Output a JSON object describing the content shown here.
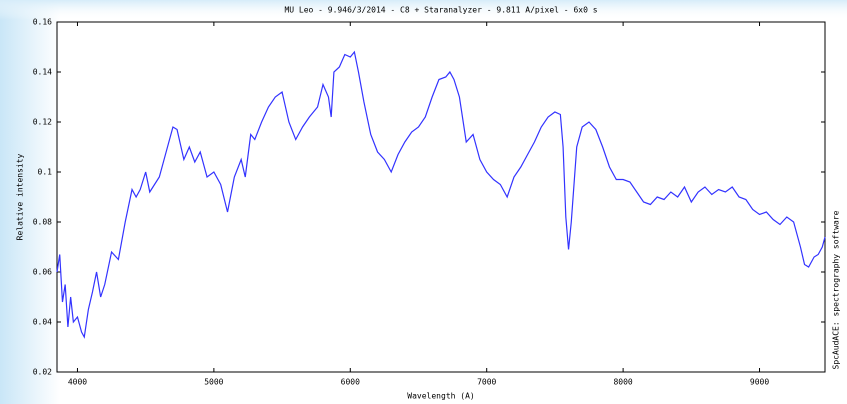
{
  "chart_data": {
    "type": "line",
    "title": "MU Leo - 9.946/3/2014 - C8 + Staranalyzer - 9.811 A/pixel - 6x0 s",
    "x_label": "Wavelength (A)",
    "y_label": "Relative intensity",
    "side_note": "SpcAudACE: spectrography software",
    "color": "#3333ff",
    "x": [
      3850,
      3870,
      3890,
      3910,
      3930,
      3950,
      3970,
      4000,
      4030,
      4050,
      4080,
      4110,
      4140,
      4170,
      4200,
      4250,
      4300,
      4350,
      4400,
      4430,
      4460,
      4500,
      4530,
      4600,
      4650,
      4700,
      4730,
      4780,
      4820,
      4860,
      4900,
      4950,
      5000,
      5050,
      5100,
      5150,
      5200,
      5230,
      5270,
      5300,
      5350,
      5400,
      5450,
      5500,
      5550,
      5600,
      5650,
      5700,
      5760,
      5800,
      5840,
      5860,
      5880,
      5920,
      5960,
      6000,
      6030,
      6060,
      6100,
      6150,
      6200,
      6250,
      6300,
      6350,
      6400,
      6450,
      6500,
      6550,
      6600,
      6650,
      6700,
      6730,
      6760,
      6800,
      6850,
      6900,
      6950,
      7000,
      7050,
      7100,
      7150,
      7200,
      7250,
      7300,
      7350,
      7400,
      7450,
      7500,
      7540,
      7560,
      7580,
      7600,
      7620,
      7660,
      7700,
      7750,
      7800,
      7850,
      7900,
      7950,
      8000,
      8050,
      8100,
      8150,
      8200,
      8250,
      8300,
      8350,
      8400,
      8450,
      8500,
      8550,
      8600,
      8650,
      8700,
      8750,
      8800,
      8850,
      8900,
      8950,
      9000,
      9050,
      9100,
      9150,
      9200,
      9250,
      9300,
      9330,
      9360,
      9400,
      9430,
      9460,
      9480
    ],
    "values": [
      0.06,
      0.067,
      0.048,
      0.055,
      0.038,
      0.05,
      0.04,
      0.042,
      0.036,
      0.034,
      0.045,
      0.052,
      0.06,
      0.05,
      0.055,
      0.068,
      0.065,
      0.08,
      0.093,
      0.09,
      0.093,
      0.1,
      0.092,
      0.098,
      0.108,
      0.118,
      0.117,
      0.105,
      0.11,
      0.104,
      0.108,
      0.098,
      0.1,
      0.095,
      0.084,
      0.098,
      0.105,
      0.098,
      0.115,
      0.113,
      0.12,
      0.126,
      0.13,
      0.132,
      0.12,
      0.113,
      0.118,
      0.122,
      0.126,
      0.135,
      0.13,
      0.122,
      0.14,
      0.142,
      0.147,
      0.146,
      0.148,
      0.14,
      0.128,
      0.115,
      0.108,
      0.105,
      0.1,
      0.107,
      0.112,
      0.116,
      0.118,
      0.122,
      0.13,
      0.137,
      0.138,
      0.14,
      0.137,
      0.13,
      0.112,
      0.115,
      0.105,
      0.1,
      0.097,
      0.095,
      0.09,
      0.098,
      0.102,
      0.107,
      0.112,
      0.118,
      0.122,
      0.124,
      0.123,
      0.11,
      0.082,
      0.069,
      0.08,
      0.11,
      0.118,
      0.12,
      0.117,
      0.11,
      0.102,
      0.097,
      0.097,
      0.096,
      0.092,
      0.088,
      0.087,
      0.09,
      0.089,
      0.092,
      0.09,
      0.094,
      0.088,
      0.092,
      0.094,
      0.091,
      0.093,
      0.092,
      0.094,
      0.09,
      0.089,
      0.085,
      0.083,
      0.084,
      0.081,
      0.079,
      0.082,
      0.08,
      0.07,
      0.063,
      0.062,
      0.066,
      0.067,
      0.07,
      0.074
    ],
    "xlim": [
      3850,
      9480
    ],
    "ylim": [
      0.02,
      0.16
    ],
    "xticks": [
      4000,
      5000,
      6000,
      7000,
      8000,
      9000
    ],
    "yticks": [
      0.02,
      0.04,
      0.06,
      0.08,
      0.1,
      0.12,
      0.14,
      0.16
    ]
  }
}
